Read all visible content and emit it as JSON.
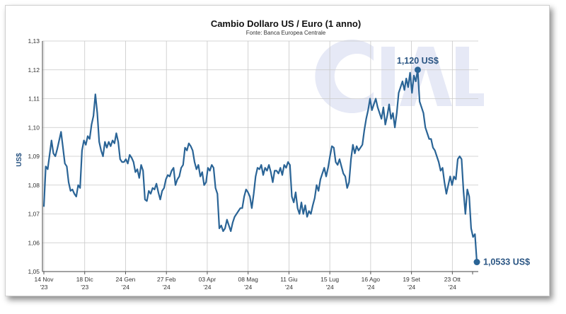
{
  "chart_data": {
    "type": "line",
    "title": "Cambio Dollaro US / Euro (1 anno)",
    "subtitle": "Fonte: Banca Europea Centrale",
    "xlabel": "",
    "ylabel": "US$",
    "ylim": [
      1.05,
      1.13
    ],
    "y_ticks": [
      "1,05",
      "1,06",
      "1,07",
      "1,08",
      "1,09",
      "1,10",
      "1,11",
      "1,12",
      "1,13"
    ],
    "y_tick_values": [
      1.05,
      1.06,
      1.07,
      1.08,
      1.09,
      1.1,
      1.11,
      1.12,
      1.13
    ],
    "x_ticks": [
      {
        "date": "14 Nov",
        "year": "'23"
      },
      {
        "date": "18 Dic",
        "year": "'23"
      },
      {
        "date": "24 Gen",
        "year": "'24"
      },
      {
        "date": "27 Feb",
        "year": "'24"
      },
      {
        "date": "03 Apr",
        "year": "'24"
      },
      {
        "date": "08 Mag",
        "year": "'24"
      },
      {
        "date": "11 Giu",
        "year": "'24"
      },
      {
        "date": "15 Lug",
        "year": "'24"
      },
      {
        "date": "16 Ago",
        "year": "'24"
      },
      {
        "date": "19 Set",
        "year": "'24"
      },
      {
        "date": "23 Ott",
        "year": "'24"
      }
    ],
    "grid": true,
    "watermark": "CIAL",
    "line_color": "#2a6496",
    "grid_color": "#c8c8c8",
    "series": [
      {
        "values": [
          1.0725,
          1.0865,
          1.0855,
          1.0905,
          1.0955,
          1.091,
          1.09,
          1.0925,
          1.0955,
          1.0985,
          1.093,
          1.0875,
          1.0865,
          1.081,
          1.078,
          1.0785,
          1.077,
          1.076,
          1.08,
          1.079,
          1.092,
          1.0955,
          1.094,
          1.097,
          1.096,
          1.101,
          1.104,
          1.1115,
          1.105,
          1.095,
          1.092,
          1.09,
          1.095,
          1.093,
          1.095,
          1.0935,
          1.0955,
          1.0945,
          1.098,
          1.095,
          1.089,
          1.088,
          1.088,
          1.089,
          1.0875,
          1.0905,
          1.0895,
          1.088,
          1.0845,
          1.0855,
          1.0825,
          1.087,
          1.085,
          1.075,
          1.0745,
          1.078,
          1.077,
          1.079,
          1.0785,
          1.0805,
          1.0775,
          1.075,
          1.078,
          1.079,
          1.082,
          1.0835,
          1.083,
          1.085,
          1.086,
          1.08,
          1.082,
          1.083,
          1.086,
          1.087,
          1.093,
          1.092,
          1.0945,
          1.0935,
          1.092,
          1.088,
          1.0855,
          1.087,
          1.083,
          1.0845,
          1.08,
          1.081,
          1.086,
          1.085,
          1.087,
          1.086,
          1.079,
          1.077,
          1.065,
          1.066,
          1.064,
          1.065,
          1.068,
          1.066,
          1.064,
          1.067,
          1.069,
          1.07,
          1.071,
          1.072,
          1.072,
          1.076,
          1.0785,
          1.0775,
          1.076,
          1.072,
          1.077,
          1.083,
          1.086,
          1.0855,
          1.087,
          1.0835,
          1.086,
          1.085,
          1.087,
          1.0845,
          1.081,
          1.085,
          1.085,
          1.084,
          1.086,
          1.0835,
          1.087,
          1.086,
          1.088,
          1.087,
          1.076,
          1.074,
          1.0775,
          1.072,
          1.07,
          1.074,
          1.07,
          1.073,
          1.069,
          1.071,
          1.07,
          1.073,
          1.0755,
          1.08,
          1.078,
          1.082,
          1.084,
          1.086,
          1.083,
          1.086,
          1.09,
          1.0935,
          1.093,
          1.088,
          1.087,
          1.089,
          1.0865,
          1.084,
          1.083,
          1.079,
          1.081,
          1.089,
          1.094,
          1.091,
          1.0935,
          1.092,
          1.093,
          1.094,
          1.099,
          1.103,
          1.106,
          1.11,
          1.106,
          1.108,
          1.11,
          1.107,
          1.105,
          1.103,
          1.107,
          1.101,
          1.104,
          1.108,
          1.103,
          1.105,
          1.1,
          1.105,
          1.112,
          1.114,
          1.116,
          1.113,
          1.117,
          1.114,
          1.119,
          1.112,
          1.118,
          1.116,
          1.12,
          1.109,
          1.107,
          1.105,
          1.1,
          1.098,
          1.096,
          1.096,
          1.093,
          1.092,
          1.09,
          1.088,
          1.085,
          1.086,
          1.081,
          1.077,
          1.08,
          1.083,
          1.08,
          1.083,
          1.082,
          1.089,
          1.09,
          1.089,
          1.078,
          1.07,
          1.0785,
          1.076,
          1.065,
          1.062,
          1.063,
          1.0533
        ]
      }
    ],
    "annotations": [
      {
        "label": "1,120 US$",
        "value": 1.12,
        "point": "max"
      },
      {
        "label": "1,0533 US$",
        "value": 1.0533,
        "point": "last"
      }
    ]
  }
}
